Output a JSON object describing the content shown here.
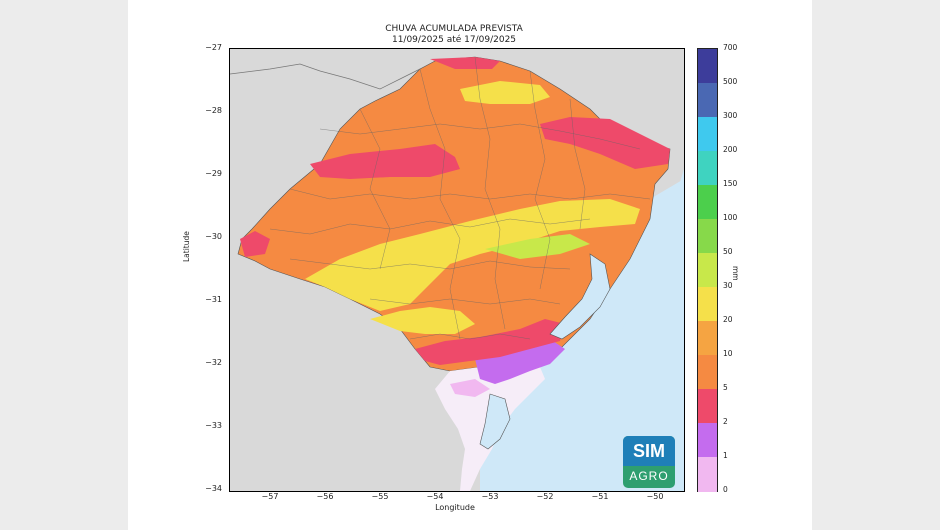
{
  "title": {
    "line1": "CHUVA ACUMULADA PREVISTA",
    "line2": "11/09/2025 até 17/09/2025"
  },
  "axes": {
    "ylabel": "Latitude",
    "xlabel": "Longitude",
    "yticks": [
      "−27",
      "−28",
      "−29",
      "−30",
      "−31",
      "−32",
      "−33",
      "−34"
    ],
    "xticks": [
      "−57",
      "−56",
      "−55",
      "−54",
      "−53",
      "−52",
      "−51",
      "−50"
    ]
  },
  "colorbar": {
    "unit": "mm",
    "labels": [
      "700",
      "500",
      "300",
      "200",
      "150",
      "100",
      "50",
      "30",
      "20",
      "10",
      "5",
      "2",
      "1",
      "0"
    ],
    "colors": [
      "#3d3d9b",
      "#4a68b3",
      "#3fc9ee",
      "#3fd3c0",
      "#4ccf4c",
      "#87d94a",
      "#c8e84a",
      "#f5e04a",
      "#f5a442",
      "#f58a42",
      "#ee4a6a",
      "#c46cee",
      "#f1b8f0",
      "#ffffff"
    ]
  },
  "map_colors": {
    "ocean": "#cfe8f8",
    "land_outside": "#d9d9d9",
    "very_light": "#f6edf8",
    "light_purple": "#f1b8f0",
    "purple": "#c46cee",
    "red": "#ee4a6a",
    "orange": "#f58a42",
    "yellow": "#f5e04a",
    "yellowgreen": "#c8e84a"
  },
  "logo": {
    "top": "SIM",
    "bottom": "AGRO"
  }
}
